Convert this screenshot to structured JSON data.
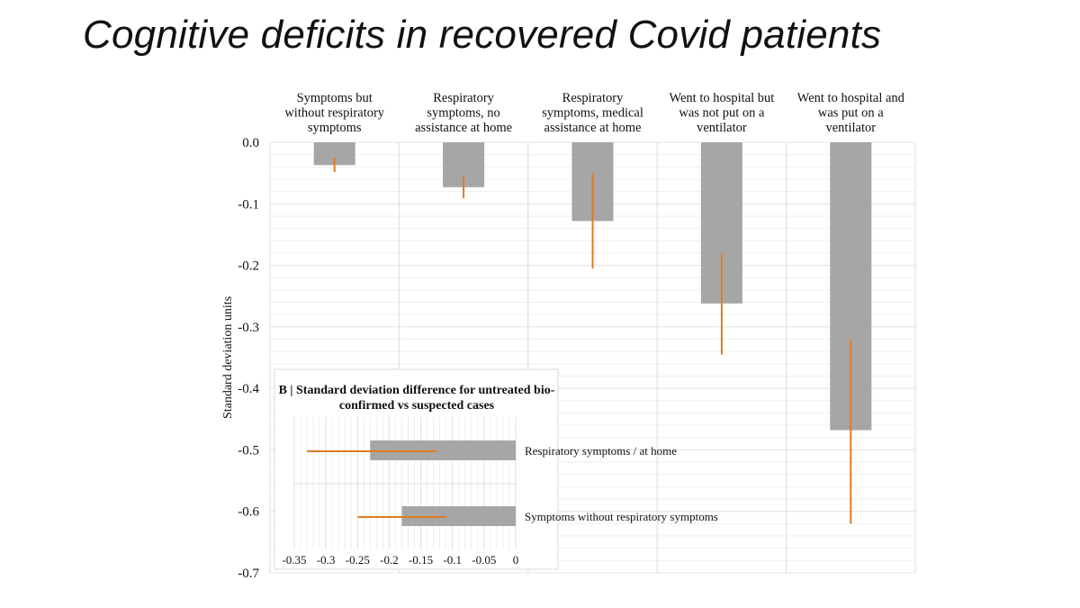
{
  "slide_title": "Cognitive deficits in recovered Covid patients",
  "colors": {
    "bar": "#a6a6a6",
    "error": "#e07b20",
    "grid": "#e4e4e4"
  },
  "chart_data": [
    {
      "type": "bar",
      "title": "",
      "ylabel": "Standard deviation units",
      "xlabel": "",
      "ylim": [
        -0.7,
        0.0
      ],
      "yticks": [
        "0.0",
        "-0.1",
        "-0.2",
        "-0.3",
        "-0.4",
        "-0.5",
        "-0.6",
        "-0.7"
      ],
      "ytick_values": [
        0,
        -0.1,
        -0.2,
        -0.3,
        -0.4,
        -0.5,
        -0.6,
        -0.7
      ],
      "grid": true,
      "categories": [
        [
          "Symptoms but",
          "without respiratory",
          "symptoms"
        ],
        [
          "Respiratory",
          "symptoms, no",
          "assistance at home"
        ],
        [
          "Respiratory",
          "symptoms, medical",
          "assistance at home"
        ],
        [
          "Went to hospital but",
          "was not put on a",
          "ventilator"
        ],
        [
          "Went to hospital and",
          "was put on a",
          "ventilator"
        ]
      ],
      "values": [
        -0.037,
        -0.073,
        -0.128,
        -0.262,
        -0.468
      ],
      "error_low": [
        -0.048,
        -0.091,
        -0.205,
        -0.345,
        -0.62
      ],
      "error_high": [
        -0.025,
        -0.055,
        -0.05,
        -0.18,
        -0.32
      ]
    },
    {
      "type": "bar",
      "orientation": "horizontal",
      "title": "B | Standard deviation difference for untreated bio-confirmed vs suspected cases",
      "title_lines": [
        "B | Standard deviation difference for untreated bio-",
        "confirmed vs suspected cases"
      ],
      "categories": [
        "Respiratory symptoms / at home",
        "Symptoms without respiratory symptoms"
      ],
      "values": [
        -0.23,
        -0.18
      ],
      "error_low": [
        -0.33,
        -0.25
      ],
      "error_high": [
        -0.125,
        -0.11
      ],
      "xlim": [
        -0.35,
        0
      ],
      "xticks": [
        "-0.35",
        "-0.3",
        "-0.25",
        "-0.2",
        "-0.15",
        "-0.1",
        "-0.05",
        "0"
      ],
      "xtick_values": [
        -0.35,
        -0.3,
        -0.25,
        -0.2,
        -0.15,
        -0.1,
        -0.05,
        0
      ]
    }
  ]
}
